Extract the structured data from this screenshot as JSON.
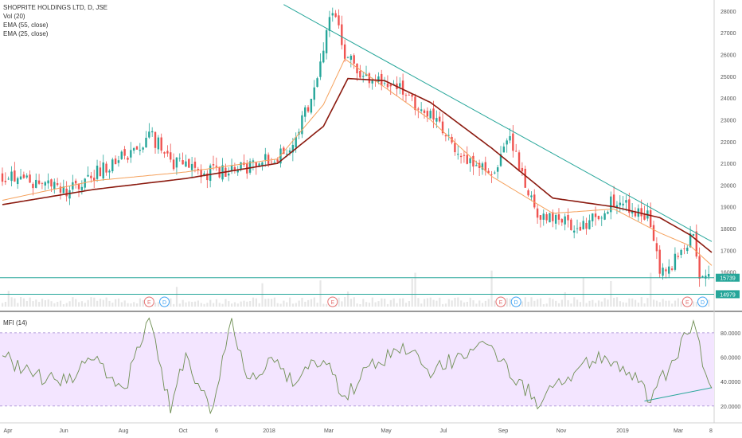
{
  "legend": {
    "title": "SHOPRITE HOLDINGS LTD, D, JSE",
    "vol": "Vol (20)",
    "ema55": "EMA (55, close)",
    "ema25": "EMA (25, close)"
  },
  "mfi_title": "MFI (14)",
  "colors": {
    "up": "#26a69a",
    "down": "#ef5350",
    "ema55": "#8b1a0f",
    "ema25": "#f5a15c",
    "mfi_line": "#6f8f54",
    "mfi_band": "#f3e5ff",
    "trendline": "#26a69a",
    "price_badge": "#26a69a"
  },
  "price_axis": {
    "min": 14300,
    "max": 28400,
    "ticks": [
      "28000",
      "27000",
      "26000",
      "25000",
      "24000",
      "23000",
      "22000",
      "21000",
      "20000",
      "19000",
      "18000",
      "17000",
      "16000"
    ]
  },
  "price_badges": [
    {
      "value": 15739,
      "label": "15739"
    },
    {
      "value": 14979,
      "label": "14979"
    }
  ],
  "mfi_axis": {
    "min": 12,
    "max": 93,
    "ticks": [
      "80.0000",
      "60.0000",
      "40.0000",
      "20.0000"
    ],
    "band": [
      20,
      80
    ]
  },
  "time_axis": [
    "Apr",
    "Jun",
    "Aug",
    "Oct",
    "6",
    "2018",
    "Mar",
    "May",
    "Jul",
    "Sep",
    "Nov",
    "2019",
    "Mar",
    "8"
  ],
  "events": [
    {
      "idx": 48,
      "label": "E",
      "kind": "earnings"
    },
    {
      "idx": 53,
      "label": "D",
      "kind": "dividend"
    },
    {
      "idx": 108,
      "label": "E",
      "kind": "earnings"
    },
    {
      "idx": 163,
      "label": "E",
      "kind": "earnings"
    },
    {
      "idx": 168,
      "label": "D",
      "kind": "dividend"
    },
    {
      "idx": 224,
      "label": "E",
      "kind": "earnings"
    },
    {
      "idx": 229,
      "label": "D",
      "kind": "dividend"
    }
  ],
  "chart_data": {
    "type": "line",
    "series": [
      {
        "name": "Close",
        "x": [
          0,
          20,
          45,
          48,
          55,
          65,
          80,
          92,
          100,
          108,
          112,
          120,
          128,
          140,
          150,
          160,
          166,
          175,
          190,
          200,
          205,
          212,
          215,
          222,
          226,
          228,
          232
        ],
        "values": [
          20500,
          19700,
          21700,
          22400,
          21100,
          20500,
          20800,
          21400,
          23500,
          28000,
          26000,
          24700,
          24600,
          23200,
          21400,
          20600,
          22000,
          18700,
          18100,
          19300,
          19000,
          18400,
          15800,
          16900,
          17900,
          15600,
          15739
        ]
      },
      {
        "name": "EMA (55, close)",
        "x": [
          0,
          30,
          60,
          90,
          105,
          113,
          125,
          140,
          160,
          180,
          200,
          215,
          225,
          232
        ],
        "values": [
          19100,
          19800,
          20300,
          21000,
          22700,
          24900,
          24800,
          23800,
          21700,
          19400,
          19000,
          18500,
          17700,
          16900
        ]
      },
      {
        "name": "EMA (25, close)",
        "x": [
          0,
          30,
          60,
          90,
          105,
          112,
          125,
          140,
          160,
          180,
          200,
          215,
          225,
          232
        ],
        "values": [
          19300,
          20200,
          20600,
          21200,
          23700,
          25800,
          24500,
          23000,
          20400,
          18700,
          18900,
          17800,
          17200,
          16300
        ]
      },
      {
        "name": "MFI (14)",
        "x": [
          0,
          10,
          20,
          30,
          40,
          48,
          55,
          60,
          68,
          75,
          80,
          88,
          95,
          105,
          112,
          120,
          130,
          140,
          150,
          160,
          166,
          175,
          185,
          195,
          205,
          212,
          220,
          226,
          230,
          232
        ],
        "values": [
          62,
          45,
          40,
          58,
          35,
          88,
          20,
          60,
          15,
          88,
          40,
          60,
          40,
          60,
          28,
          50,
          70,
          50,
          60,
          70,
          48,
          23,
          45,
          60,
          50,
          25,
          60,
          90,
          45,
          38
        ]
      }
    ],
    "trendlines": [
      {
        "from": [
          92,
          28300
        ],
        "to": [
          232,
          17400
        ],
        "pane": "price"
      },
      {
        "from": [
          210,
          24
        ],
        "to": [
          232,
          35
        ],
        "pane": "mfi"
      }
    ],
    "horizontal_lines": [
      15739,
      14979
    ],
    "bars": 232,
    "ylim_price": [
      14300,
      28400
    ],
    "ylim_mfi": [
      12,
      93
    ]
  }
}
